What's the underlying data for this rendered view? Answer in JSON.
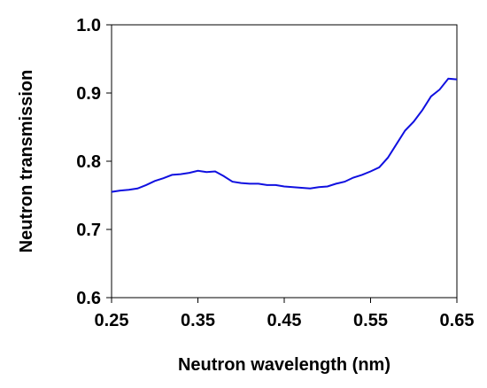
{
  "chart_data": {
    "type": "line",
    "xlabel": "Neutron wavelength (nm)",
    "ylabel": "Neutron transmission",
    "xlim": [
      0.25,
      0.65
    ],
    "ylim": [
      0.6,
      1.0
    ],
    "x_ticks": [
      "0.25",
      "0.35",
      "0.45",
      "0.55",
      "0.65"
    ],
    "y_ticks": [
      "0.6",
      "0.7",
      "0.8",
      "0.9",
      "1.0"
    ],
    "grid": false,
    "legend": "none",
    "series": [
      {
        "color": "#1010e0",
        "x": [
          0.25,
          0.26,
          0.27,
          0.28,
          0.29,
          0.3,
          0.31,
          0.32,
          0.33,
          0.34,
          0.35,
          0.36,
          0.37,
          0.38,
          0.39,
          0.4,
          0.41,
          0.42,
          0.43,
          0.44,
          0.45,
          0.46,
          0.47,
          0.48,
          0.49,
          0.5,
          0.51,
          0.52,
          0.53,
          0.54,
          0.55,
          0.56,
          0.57,
          0.58,
          0.59,
          0.6,
          0.61,
          0.62,
          0.63,
          0.64,
          0.65
        ],
        "y": [
          0.755,
          0.757,
          0.758,
          0.76,
          0.765,
          0.771,
          0.775,
          0.78,
          0.781,
          0.783,
          0.786,
          0.784,
          0.785,
          0.778,
          0.77,
          0.768,
          0.767,
          0.767,
          0.765,
          0.765,
          0.763,
          0.762,
          0.761,
          0.76,
          0.762,
          0.763,
          0.767,
          0.77,
          0.776,
          0.78,
          0.785,
          0.791,
          0.805,
          0.825,
          0.845,
          0.858,
          0.875,
          0.895,
          0.905,
          0.921,
          0.92
        ]
      }
    ]
  }
}
